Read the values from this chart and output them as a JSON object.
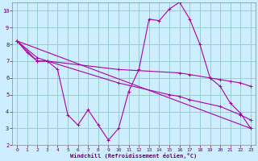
{
  "background_color": "#cceeff",
  "line_color": "#aa00aa",
  "grid_color": "#99cccc",
  "xlabel": "Windchill (Refroidissement éolien,°C)",
  "xlabel_color": "#660066",
  "tick_color": "#660066",
  "xlim": [
    -0.5,
    23.5
  ],
  "ylim": [
    2,
    10.5
  ],
  "yticks": [
    2,
    3,
    4,
    5,
    6,
    7,
    8,
    9,
    10
  ],
  "xticks": [
    0,
    1,
    2,
    3,
    4,
    5,
    6,
    7,
    8,
    9,
    10,
    11,
    12,
    13,
    14,
    15,
    16,
    17,
    18,
    19,
    20,
    21,
    22,
    23
  ],
  "line1_x": [
    0,
    1,
    2,
    3,
    4,
    5,
    6,
    7,
    8,
    9,
    10,
    11,
    12,
    13,
    14,
    15,
    16,
    17,
    18,
    19,
    20,
    21,
    22,
    23
  ],
  "line1_y": [
    8.2,
    7.5,
    7.0,
    7.0,
    6.5,
    3.8,
    3.2,
    4.1,
    3.2,
    2.3,
    3.0,
    5.2,
    6.5,
    9.5,
    9.4,
    10.1,
    10.5,
    9.5,
    8.0,
    6.0,
    5.5,
    4.5,
    3.9,
    3.0
  ],
  "line2_x": [
    0,
    2,
    3,
    10,
    16,
    17,
    19,
    20,
    21,
    22,
    23
  ],
  "line2_y": [
    8.2,
    7.0,
    7.0,
    6.5,
    6.3,
    6.2,
    6.0,
    5.9,
    5.8,
    5.7,
    5.5
  ],
  "line3_x": [
    0,
    23
  ],
  "line3_y": [
    8.2,
    3.0
  ],
  "line4_x": [
    0,
    2,
    3,
    10,
    15,
    16,
    17,
    20,
    22,
    23
  ],
  "line4_y": [
    8.2,
    7.2,
    7.0,
    5.7,
    5.0,
    4.9,
    4.7,
    4.3,
    3.8,
    3.5
  ]
}
